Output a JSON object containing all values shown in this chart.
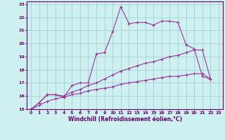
{
  "xlabel": "Windchill (Refroidissement éolien,°C)",
  "background_color": "#cff0f0",
  "grid_color": "#99cccc",
  "line_color": "#993399",
  "xlim": [
    -0.5,
    23.5
  ],
  "ylim": [
    15,
    23.2
  ],
  "yticks": [
    15,
    16,
    17,
    18,
    19,
    20,
    21,
    22,
    23
  ],
  "xticks": [
    0,
    1,
    2,
    3,
    4,
    5,
    6,
    7,
    8,
    9,
    10,
    11,
    12,
    13,
    14,
    15,
    16,
    17,
    18,
    19,
    20,
    21,
    22,
    23
  ],
  "series1_x": [
    0,
    1,
    2,
    3,
    4,
    5,
    6,
    7,
    8,
    9,
    10,
    11,
    12,
    13,
    14,
    15,
    16,
    17,
    18,
    19,
    20,
    21,
    22
  ],
  "series1_y": [
    15.0,
    15.5,
    16.1,
    16.1,
    15.9,
    16.8,
    17.0,
    17.0,
    19.2,
    19.3,
    20.9,
    22.8,
    21.5,
    21.6,
    21.6,
    21.4,
    21.7,
    21.7,
    21.6,
    19.9,
    19.6,
    17.5,
    17.3
  ],
  "series2_x": [
    0,
    1,
    2,
    3,
    4,
    5,
    6,
    7,
    8,
    9,
    10,
    11,
    12,
    13,
    14,
    15,
    16,
    17,
    18,
    19,
    20,
    21,
    22
  ],
  "series2_y": [
    15.0,
    15.5,
    16.1,
    16.1,
    16.0,
    16.3,
    16.5,
    16.8,
    17.0,
    17.3,
    17.6,
    17.9,
    18.1,
    18.3,
    18.5,
    18.6,
    18.8,
    19.0,
    19.1,
    19.3,
    19.5,
    19.5,
    17.3
  ],
  "series3_x": [
    0,
    1,
    2,
    3,
    4,
    5,
    6,
    7,
    8,
    9,
    10,
    11,
    12,
    13,
    14,
    15,
    16,
    17,
    18,
    19,
    20,
    21,
    22
  ],
  "series3_y": [
    15.0,
    15.3,
    15.6,
    15.8,
    15.9,
    16.1,
    16.2,
    16.4,
    16.5,
    16.6,
    16.7,
    16.9,
    17.0,
    17.1,
    17.2,
    17.3,
    17.4,
    17.5,
    17.5,
    17.6,
    17.7,
    17.7,
    17.3
  ]
}
